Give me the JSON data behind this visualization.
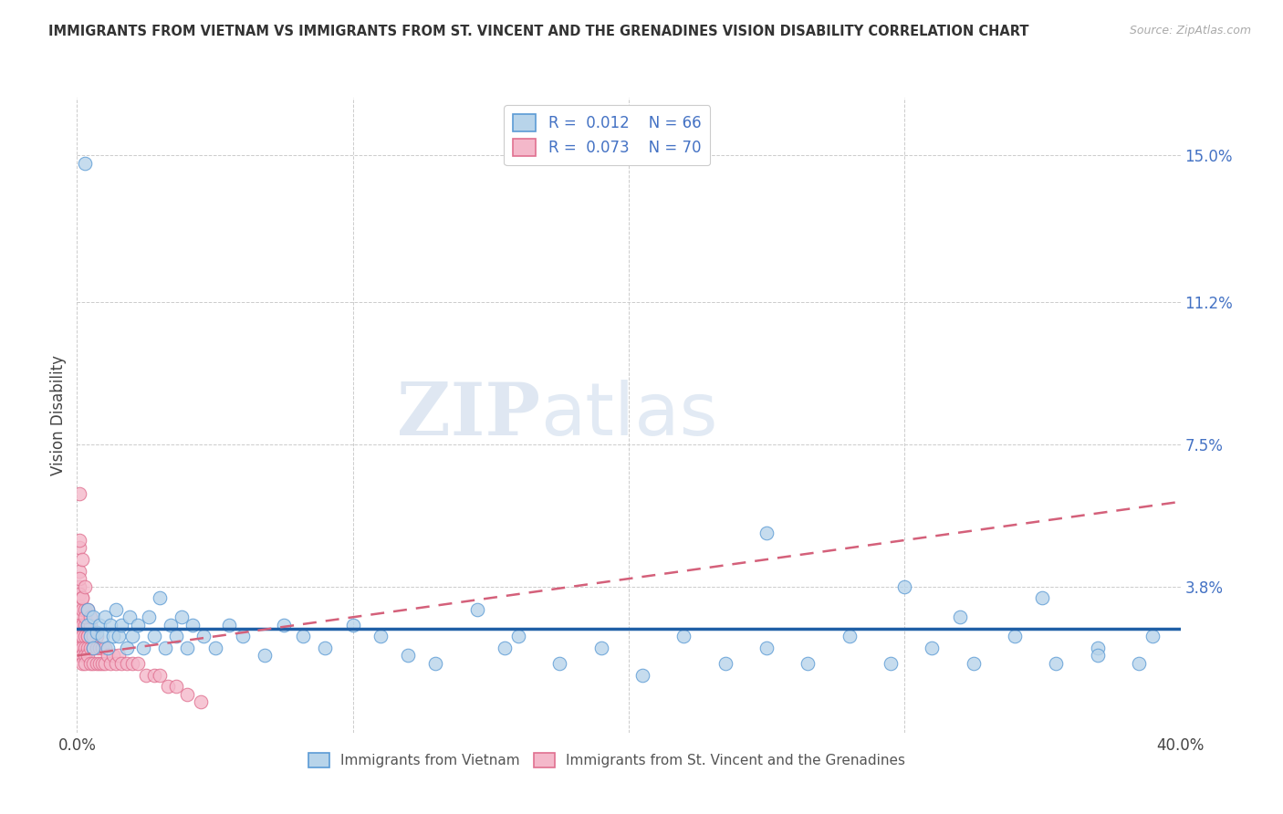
{
  "title": "IMMIGRANTS FROM VIETNAM VS IMMIGRANTS FROM ST. VINCENT AND THE GRENADINES VISION DISABILITY CORRELATION CHART",
  "source": "Source: ZipAtlas.com",
  "ylabel": "Vision Disability",
  "xlim": [
    0.0,
    0.4
  ],
  "ylim": [
    0.0,
    0.165
  ],
  "xtick_vals": [
    0.0,
    0.1,
    0.2,
    0.3,
    0.4
  ],
  "xticklabels": [
    "0.0%",
    "",
    "",
    "",
    "40.0%"
  ],
  "ytick_vals": [
    0.038,
    0.075,
    0.112,
    0.15
  ],
  "yticklabels": [
    "3.8%",
    "7.5%",
    "11.2%",
    "15.0%"
  ],
  "color_vietnam_fill": "#b8d4ea",
  "color_vietnam_edge": "#5b9bd5",
  "color_svg_fill": "#f4b8ca",
  "color_svg_edge": "#e07090",
  "color_vietnam_line": "#1f5fa6",
  "color_svg_line": "#d4607a",
  "watermark_zip": "ZIP",
  "watermark_atlas": "atlas",
  "vietnam_x": [
    0.003,
    0.004,
    0.004,
    0.005,
    0.006,
    0.006,
    0.007,
    0.008,
    0.009,
    0.01,
    0.011,
    0.012,
    0.013,
    0.014,
    0.015,
    0.016,
    0.018,
    0.019,
    0.02,
    0.022,
    0.024,
    0.026,
    0.028,
    0.03,
    0.032,
    0.034,
    0.036,
    0.038,
    0.04,
    0.042,
    0.046,
    0.05,
    0.055,
    0.06,
    0.068,
    0.075,
    0.082,
    0.09,
    0.1,
    0.11,
    0.12,
    0.13,
    0.145,
    0.155,
    0.16,
    0.175,
    0.19,
    0.205,
    0.22,
    0.235,
    0.25,
    0.265,
    0.28,
    0.295,
    0.31,
    0.325,
    0.34,
    0.355,
    0.37,
    0.385,
    0.25,
    0.3,
    0.32,
    0.35,
    0.37,
    0.39
  ],
  "vietnam_y": [
    0.148,
    0.028,
    0.032,
    0.025,
    0.022,
    0.03,
    0.026,
    0.028,
    0.025,
    0.03,
    0.022,
    0.028,
    0.025,
    0.032,
    0.025,
    0.028,
    0.022,
    0.03,
    0.025,
    0.028,
    0.022,
    0.03,
    0.025,
    0.035,
    0.022,
    0.028,
    0.025,
    0.03,
    0.022,
    0.028,
    0.025,
    0.022,
    0.028,
    0.025,
    0.02,
    0.028,
    0.025,
    0.022,
    0.028,
    0.025,
    0.02,
    0.018,
    0.032,
    0.022,
    0.025,
    0.018,
    0.022,
    0.015,
    0.025,
    0.018,
    0.022,
    0.018,
    0.025,
    0.018,
    0.022,
    0.018,
    0.025,
    0.018,
    0.022,
    0.018,
    0.052,
    0.038,
    0.03,
    0.035,
    0.02,
    0.025
  ],
  "svg_x": [
    0.001,
    0.001,
    0.001,
    0.001,
    0.001,
    0.001,
    0.001,
    0.001,
    0.001,
    0.001,
    0.001,
    0.002,
    0.002,
    0.002,
    0.002,
    0.002,
    0.002,
    0.002,
    0.003,
    0.003,
    0.003,
    0.003,
    0.003,
    0.003,
    0.004,
    0.004,
    0.004,
    0.004,
    0.005,
    0.005,
    0.005,
    0.005,
    0.006,
    0.006,
    0.006,
    0.007,
    0.007,
    0.007,
    0.008,
    0.008,
    0.009,
    0.009,
    0.01,
    0.01,
    0.011,
    0.012,
    0.013,
    0.014,
    0.015,
    0.016,
    0.018,
    0.02,
    0.022,
    0.025,
    0.028,
    0.03,
    0.033,
    0.036,
    0.04,
    0.045,
    0.001,
    0.001,
    0.002,
    0.002,
    0.003,
    0.003,
    0.004,
    0.004,
    0.005,
    0.006
  ],
  "svg_y": [
    0.062,
    0.048,
    0.042,
    0.038,
    0.036,
    0.033,
    0.03,
    0.028,
    0.025,
    0.022,
    0.02,
    0.035,
    0.032,
    0.028,
    0.025,
    0.022,
    0.02,
    0.018,
    0.032,
    0.028,
    0.025,
    0.022,
    0.02,
    0.018,
    0.028,
    0.025,
    0.022,
    0.02,
    0.028,
    0.025,
    0.022,
    0.018,
    0.025,
    0.022,
    0.018,
    0.025,
    0.022,
    0.018,
    0.022,
    0.018,
    0.022,
    0.018,
    0.022,
    0.018,
    0.02,
    0.018,
    0.02,
    0.018,
    0.02,
    0.018,
    0.018,
    0.018,
    0.018,
    0.015,
    0.015,
    0.015,
    0.012,
    0.012,
    0.01,
    0.008,
    0.05,
    0.04,
    0.045,
    0.035,
    0.038,
    0.03,
    0.032,
    0.025,
    0.03,
    0.025
  ],
  "trend_vietnam_x0": 0.0,
  "trend_vietnam_y0": 0.027,
  "trend_vietnam_x1": 0.4,
  "trend_vietnam_y1": 0.027,
  "trend_svg_x0": 0.0,
  "trend_svg_y0": 0.02,
  "trend_svg_x1": 0.4,
  "trend_svg_y1": 0.06
}
